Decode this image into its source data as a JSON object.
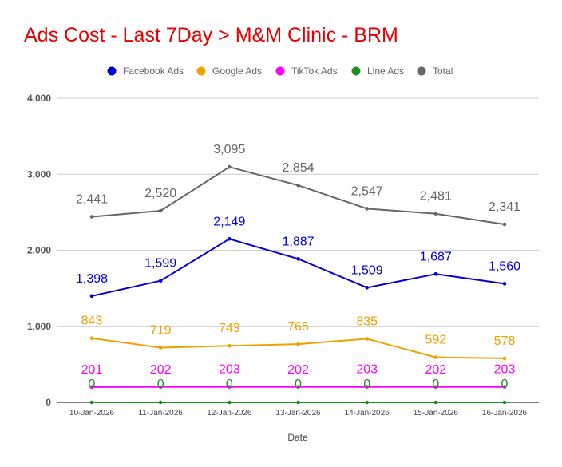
{
  "chart_data": {
    "type": "line",
    "title": "Ads Cost - Last 7Day > M&M Clinic - BRM",
    "xlabel": "Date",
    "ylabel": "",
    "ylim": [
      0,
      4000
    ],
    "yticks": [
      0,
      1000,
      2000,
      3000,
      4000
    ],
    "ytick_labels": [
      "0",
      "1,000",
      "2,000",
      "3,000",
      "4,000"
    ],
    "grid": true,
    "legend_position": "top",
    "categories": [
      "10-Jan-2026",
      "11-Jan-2026",
      "12-Jan-2026",
      "13-Jan-2026",
      "14-Jan-2026",
      "15-Jan-2026",
      "16-Jan-2026"
    ],
    "series": [
      {
        "key": "facebook",
        "name": "Facebook Ads",
        "color": "#0000dd",
        "values": [
          1398,
          1599,
          2149,
          1887,
          1509,
          1687,
          1560
        ],
        "labels": [
          "1,398",
          "1,599",
          "2,149",
          "1,887",
          "1,509",
          "1,687",
          "1,560"
        ]
      },
      {
        "key": "google",
        "name": "Google Ads",
        "color": "#f0a000",
        "values": [
          843,
          719,
          743,
          765,
          835,
          592,
          578
        ],
        "labels": [
          "843",
          "719",
          "743",
          "765",
          "835",
          "592",
          "578"
        ]
      },
      {
        "key": "tiktok",
        "name": "TikTok Ads",
        "color": "#ff00ff",
        "values": [
          201,
          202,
          203,
          202,
          203,
          202,
          203
        ],
        "labels": [
          "201",
          "202",
          "203",
          "202",
          "203",
          "202",
          "203"
        ]
      },
      {
        "key": "line",
        "name": "Line Ads",
        "color": "#228b22",
        "values": [
          0,
          0,
          0,
          0,
          0,
          0,
          0
        ],
        "labels": [
          "0",
          "0",
          "0",
          "0",
          "0",
          "0",
          "0"
        ]
      },
      {
        "key": "total",
        "name": "Total",
        "color": "#666666",
        "values": [
          2441,
          2520,
          3095,
          2854,
          2547,
          2481,
          2341
        ],
        "labels": [
          "2,441",
          "2,520",
          "3,095",
          "2,854",
          "2,547",
          "2,481",
          "2,341"
        ]
      }
    ]
  }
}
